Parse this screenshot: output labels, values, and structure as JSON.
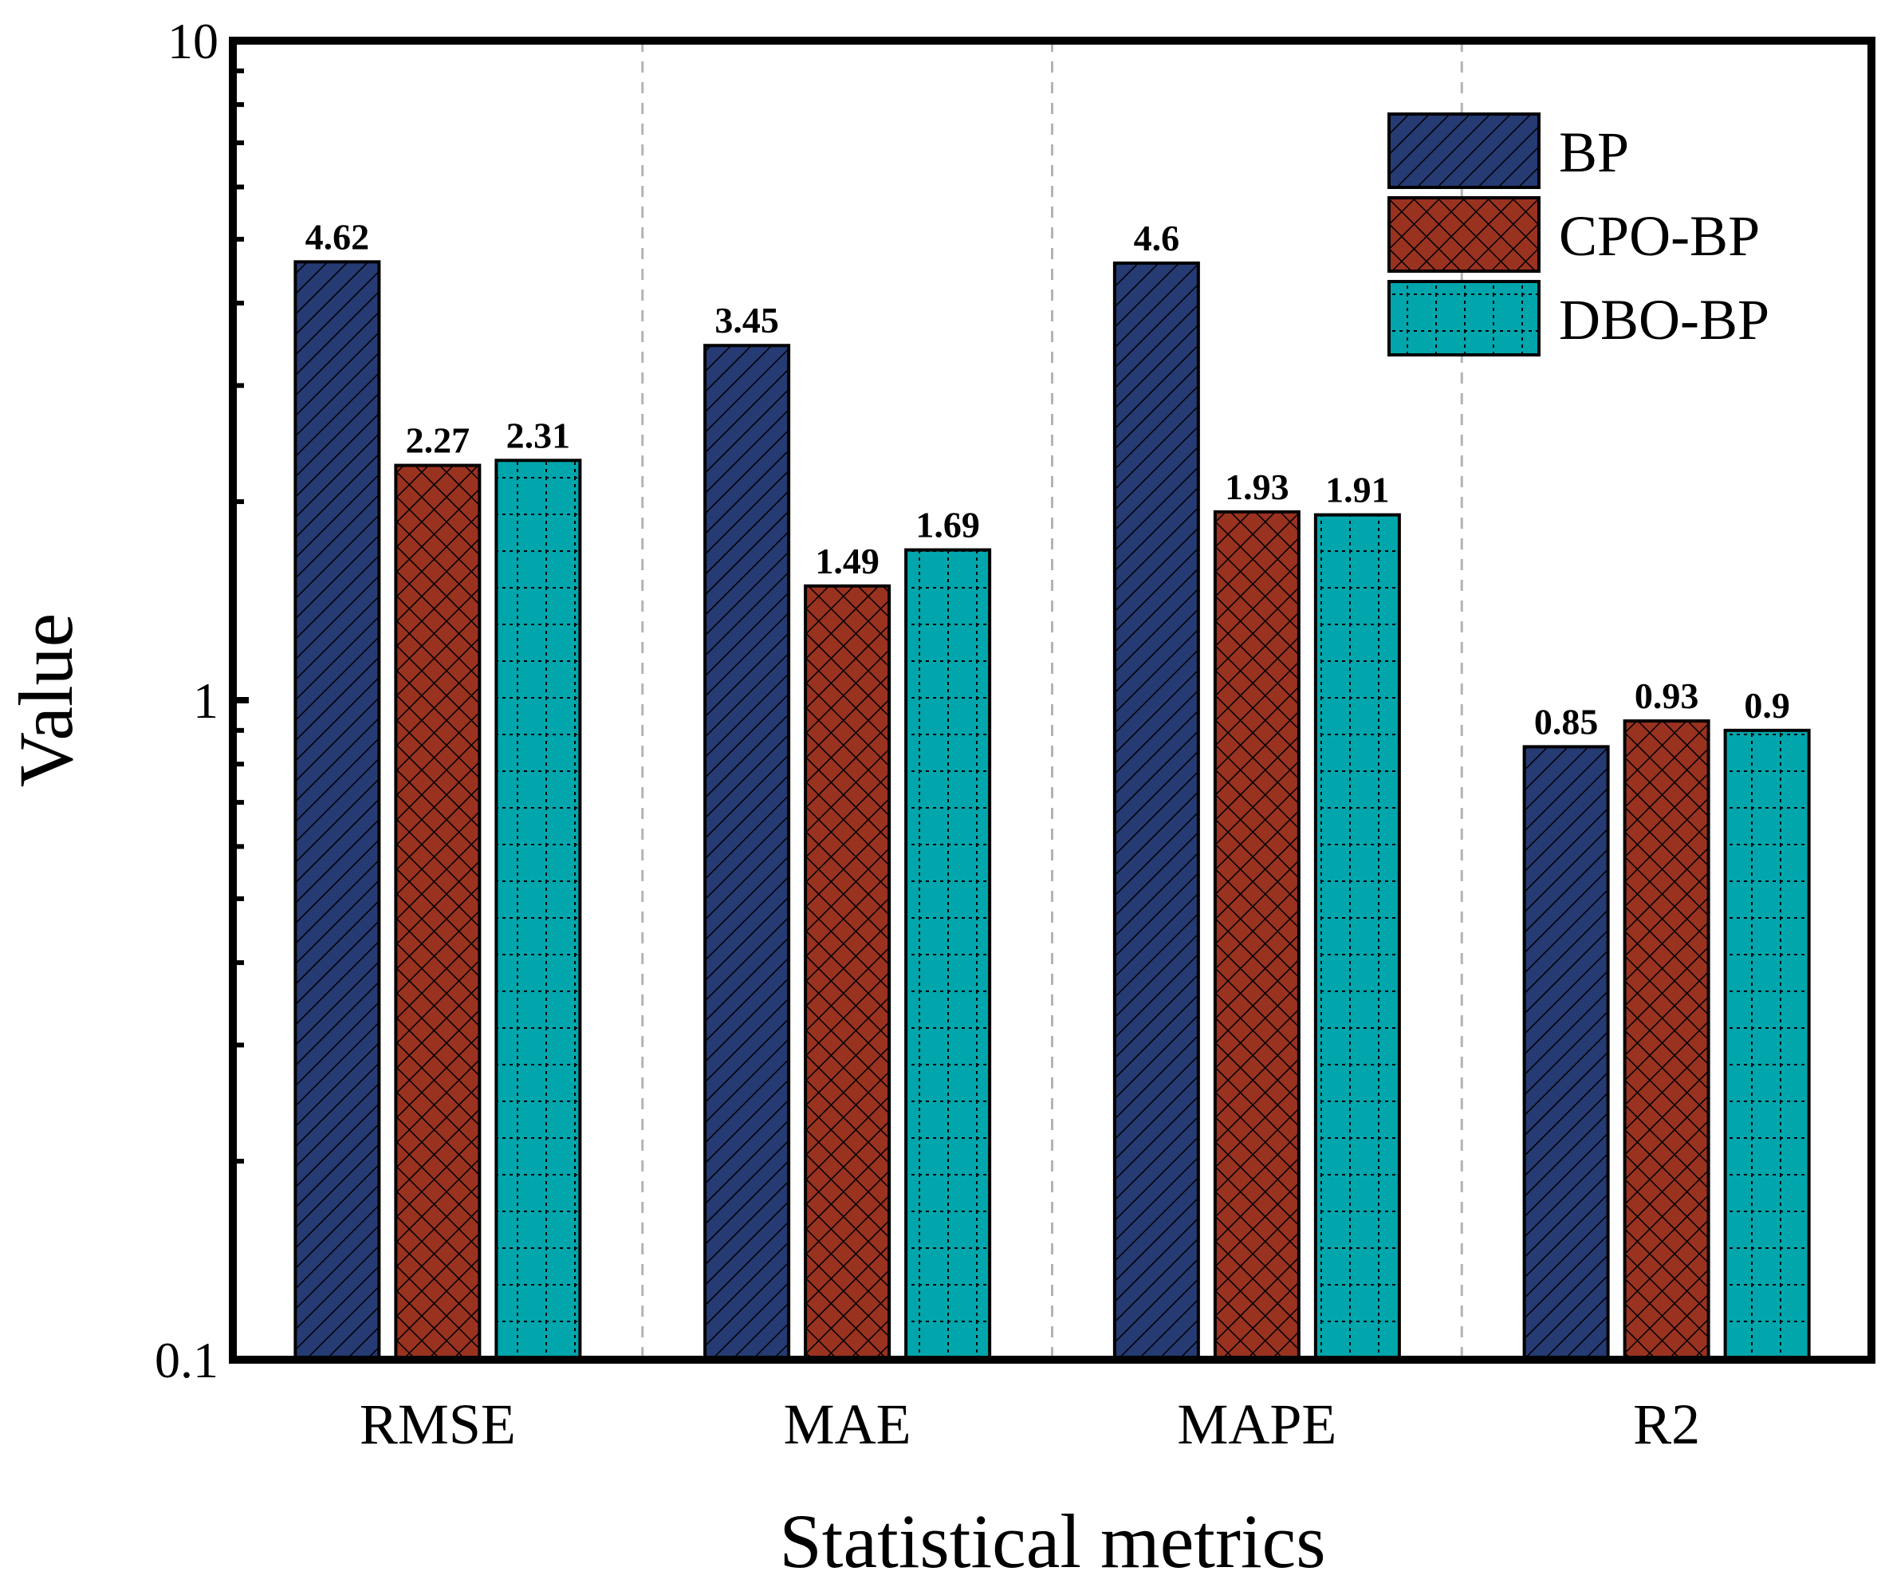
{
  "chart_data": {
    "type": "bar",
    "title": "",
    "xlabel": "Statistical metrics",
    "ylabel": "Value",
    "yscale": "log",
    "ylim": [
      0.1,
      10
    ],
    "yticks": [
      {
        "value": 0.1,
        "label": "0.1"
      },
      {
        "value": 1,
        "label": "1"
      },
      {
        "value": 10,
        "label": "10"
      }
    ],
    "categories": [
      "RMSE",
      "MAE",
      "MAPE",
      "R2"
    ],
    "series": [
      {
        "name": "BP",
        "values": [
          4.62,
          3.45,
          4.6,
          0.85
        ],
        "labels": [
          "4.62",
          "3.45",
          "4.6",
          "0.85"
        ],
        "color": "#263a73",
        "pattern": "diagonal-hatch"
      },
      {
        "name": "CPO-BP",
        "values": [
          2.27,
          1.49,
          1.93,
          0.93
        ],
        "labels": [
          "2.27",
          "1.49",
          "1.93",
          "0.93"
        ],
        "color": "#9a3220",
        "pattern": "crosshatch"
      },
      {
        "name": "DBO-BP",
        "values": [
          2.31,
          1.69,
          1.91,
          0.9
        ],
        "labels": [
          "2.31",
          "1.69",
          "1.91",
          "0.9"
        ],
        "color": "#00a6ac",
        "pattern": "dotted-grid"
      }
    ],
    "legend": {
      "position": "top-right"
    },
    "grid": false,
    "category_separators": "dashed"
  }
}
